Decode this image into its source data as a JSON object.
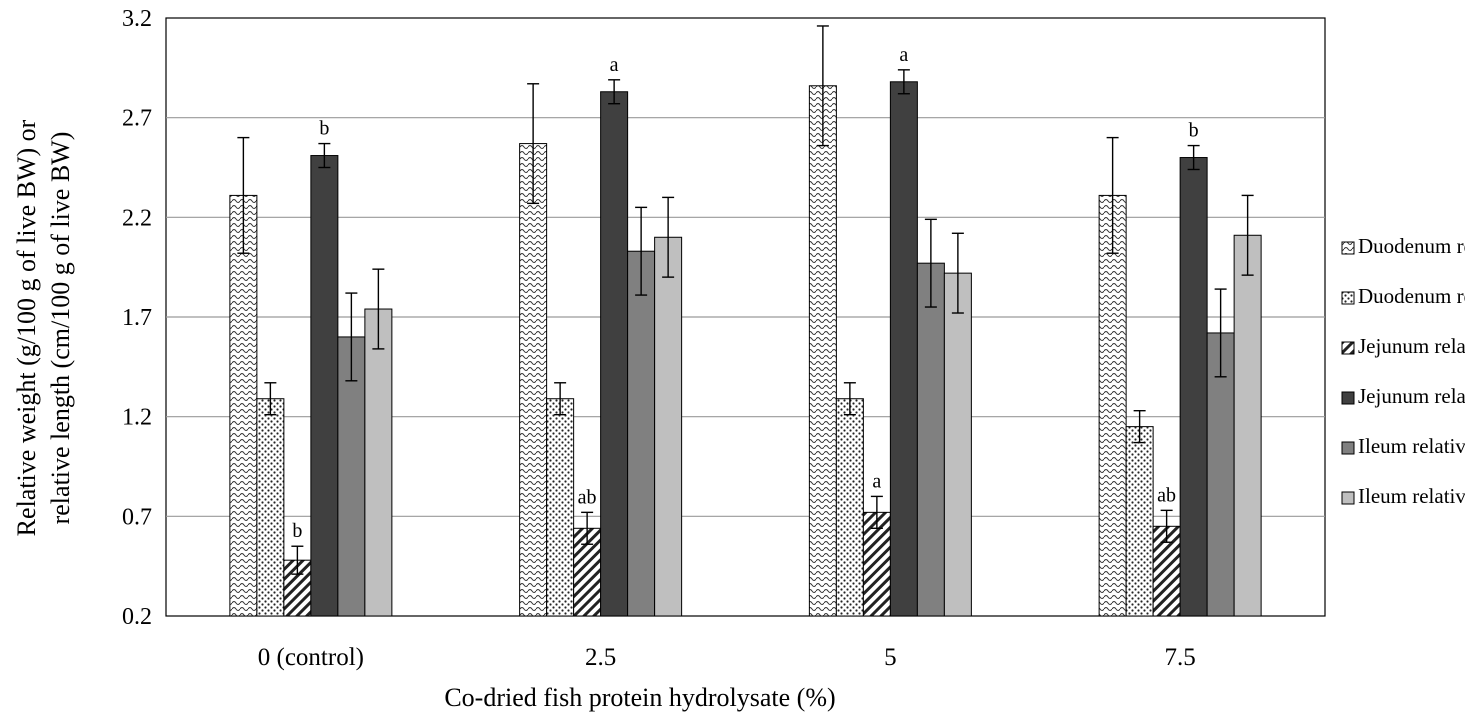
{
  "chart_data": {
    "type": "bar",
    "title": "",
    "xlabel": "Co-dried fish protein hydrolysate (%)",
    "ylabel_line1": "Relative weight (g/100 g of live BW) or",
    "ylabel_line2": "relative length (cm/100 g of live BW)",
    "ylim": [
      0.2,
      3.2
    ],
    "yticks": [
      "0.2",
      "0.7",
      "1.2",
      "1.7",
      "2.2",
      "2.7",
      "3.2"
    ],
    "grid": true,
    "legend_position": "right",
    "categories": [
      "0 (control)",
      "2.5",
      "5",
      "7.5"
    ],
    "series": [
      {
        "name": "Duodenum relative weight",
        "pattern": "wave",
        "values": [
          2.31,
          2.57,
          2.86,
          2.31
        ],
        "errors": [
          0.29,
          0.3,
          0.3,
          0.29
        ],
        "labels": [
          "",
          "",
          "",
          ""
        ]
      },
      {
        "name": "Duodenum relative length",
        "pattern": "dots",
        "values": [
          1.29,
          1.29,
          1.29,
          1.15
        ],
        "errors": [
          0.08,
          0.08,
          0.08,
          0.08
        ],
        "labels": [
          "",
          "",
          "",
          ""
        ]
      },
      {
        "name": "Jejunum relative weight",
        "pattern": "hatch",
        "values": [
          0.48,
          0.64,
          0.72,
          0.65
        ],
        "errors": [
          0.07,
          0.08,
          0.08,
          0.08
        ],
        "labels": [
          "b",
          "ab",
          "a",
          "ab"
        ]
      },
      {
        "name": "Jejunum relative length",
        "pattern": "dark",
        "color": "#404040",
        "values": [
          2.51,
          2.83,
          2.88,
          2.5
        ],
        "errors": [
          0.06,
          0.06,
          0.06,
          0.06
        ],
        "labels": [
          "b",
          "a",
          "a",
          "b"
        ]
      },
      {
        "name": "Ileum relative weight",
        "pattern": "mid",
        "color": "#808080",
        "values": [
          1.6,
          2.03,
          1.97,
          1.62
        ],
        "errors": [
          0.22,
          0.22,
          0.22,
          0.22
        ],
        "labels": [
          "",
          "",
          "",
          ""
        ]
      },
      {
        "name": "Ileum relative length",
        "pattern": "light",
        "color": "#bfbfbf",
        "values": [
          1.74,
          2.1,
          1.92,
          2.11
        ],
        "errors": [
          0.2,
          0.2,
          0.2,
          0.2
        ],
        "labels": [
          "",
          "",
          "",
          ""
        ]
      }
    ]
  }
}
